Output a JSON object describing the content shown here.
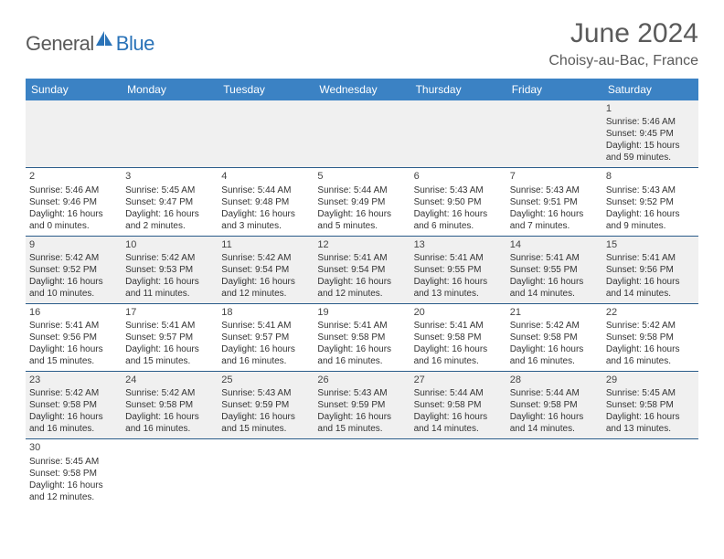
{
  "brand": {
    "part1": "General",
    "part2": "Blue"
  },
  "title": "June 2024",
  "location": "Choisy-au-Bac, France",
  "colors": {
    "header_bg": "#3b82c4",
    "header_text": "#ffffff",
    "row_border": "#2a5c8a",
    "alt_row_bg": "#f0f0f0",
    "brand_grey": "#5a5a5a",
    "brand_blue": "#2a73b8"
  },
  "day_labels": [
    "Sunday",
    "Monday",
    "Tuesday",
    "Wednesday",
    "Thursday",
    "Friday",
    "Saturday"
  ],
  "weeks": [
    [
      null,
      null,
      null,
      null,
      null,
      null,
      {
        "n": "1",
        "sr": "5:46 AM",
        "ss": "9:45 PM",
        "dl": "15 hours and 59 minutes."
      }
    ],
    [
      {
        "n": "2",
        "sr": "5:46 AM",
        "ss": "9:46 PM",
        "dl": "16 hours and 0 minutes."
      },
      {
        "n": "3",
        "sr": "5:45 AM",
        "ss": "9:47 PM",
        "dl": "16 hours and 2 minutes."
      },
      {
        "n": "4",
        "sr": "5:44 AM",
        "ss": "9:48 PM",
        "dl": "16 hours and 3 minutes."
      },
      {
        "n": "5",
        "sr": "5:44 AM",
        "ss": "9:49 PM",
        "dl": "16 hours and 5 minutes."
      },
      {
        "n": "6",
        "sr": "5:43 AM",
        "ss": "9:50 PM",
        "dl": "16 hours and 6 minutes."
      },
      {
        "n": "7",
        "sr": "5:43 AM",
        "ss": "9:51 PM",
        "dl": "16 hours and 7 minutes."
      },
      {
        "n": "8",
        "sr": "5:43 AM",
        "ss": "9:52 PM",
        "dl": "16 hours and 9 minutes."
      }
    ],
    [
      {
        "n": "9",
        "sr": "5:42 AM",
        "ss": "9:52 PM",
        "dl": "16 hours and 10 minutes."
      },
      {
        "n": "10",
        "sr": "5:42 AM",
        "ss": "9:53 PM",
        "dl": "16 hours and 11 minutes."
      },
      {
        "n": "11",
        "sr": "5:42 AM",
        "ss": "9:54 PM",
        "dl": "16 hours and 12 minutes."
      },
      {
        "n": "12",
        "sr": "5:41 AM",
        "ss": "9:54 PM",
        "dl": "16 hours and 12 minutes."
      },
      {
        "n": "13",
        "sr": "5:41 AM",
        "ss": "9:55 PM",
        "dl": "16 hours and 13 minutes."
      },
      {
        "n": "14",
        "sr": "5:41 AM",
        "ss": "9:55 PM",
        "dl": "16 hours and 14 minutes."
      },
      {
        "n": "15",
        "sr": "5:41 AM",
        "ss": "9:56 PM",
        "dl": "16 hours and 14 minutes."
      }
    ],
    [
      {
        "n": "16",
        "sr": "5:41 AM",
        "ss": "9:56 PM",
        "dl": "16 hours and 15 minutes."
      },
      {
        "n": "17",
        "sr": "5:41 AM",
        "ss": "9:57 PM",
        "dl": "16 hours and 15 minutes."
      },
      {
        "n": "18",
        "sr": "5:41 AM",
        "ss": "9:57 PM",
        "dl": "16 hours and 16 minutes."
      },
      {
        "n": "19",
        "sr": "5:41 AM",
        "ss": "9:58 PM",
        "dl": "16 hours and 16 minutes."
      },
      {
        "n": "20",
        "sr": "5:41 AM",
        "ss": "9:58 PM",
        "dl": "16 hours and 16 minutes."
      },
      {
        "n": "21",
        "sr": "5:42 AM",
        "ss": "9:58 PM",
        "dl": "16 hours and 16 minutes."
      },
      {
        "n": "22",
        "sr": "5:42 AM",
        "ss": "9:58 PM",
        "dl": "16 hours and 16 minutes."
      }
    ],
    [
      {
        "n": "23",
        "sr": "5:42 AM",
        "ss": "9:58 PM",
        "dl": "16 hours and 16 minutes."
      },
      {
        "n": "24",
        "sr": "5:42 AM",
        "ss": "9:58 PM",
        "dl": "16 hours and 16 minutes."
      },
      {
        "n": "25",
        "sr": "5:43 AM",
        "ss": "9:59 PM",
        "dl": "16 hours and 15 minutes."
      },
      {
        "n": "26",
        "sr": "5:43 AM",
        "ss": "9:59 PM",
        "dl": "16 hours and 15 minutes."
      },
      {
        "n": "27",
        "sr": "5:44 AM",
        "ss": "9:58 PM",
        "dl": "16 hours and 14 minutes."
      },
      {
        "n": "28",
        "sr": "5:44 AM",
        "ss": "9:58 PM",
        "dl": "16 hours and 14 minutes."
      },
      {
        "n": "29",
        "sr": "5:45 AM",
        "ss": "9:58 PM",
        "dl": "16 hours and 13 minutes."
      }
    ],
    [
      {
        "n": "30",
        "sr": "5:45 AM",
        "ss": "9:58 PM",
        "dl": "16 hours and 12 minutes."
      },
      null,
      null,
      null,
      null,
      null,
      null
    ]
  ],
  "labels": {
    "sunrise": "Sunrise: ",
    "sunset": "Sunset: ",
    "daylight": "Daylight: "
  }
}
